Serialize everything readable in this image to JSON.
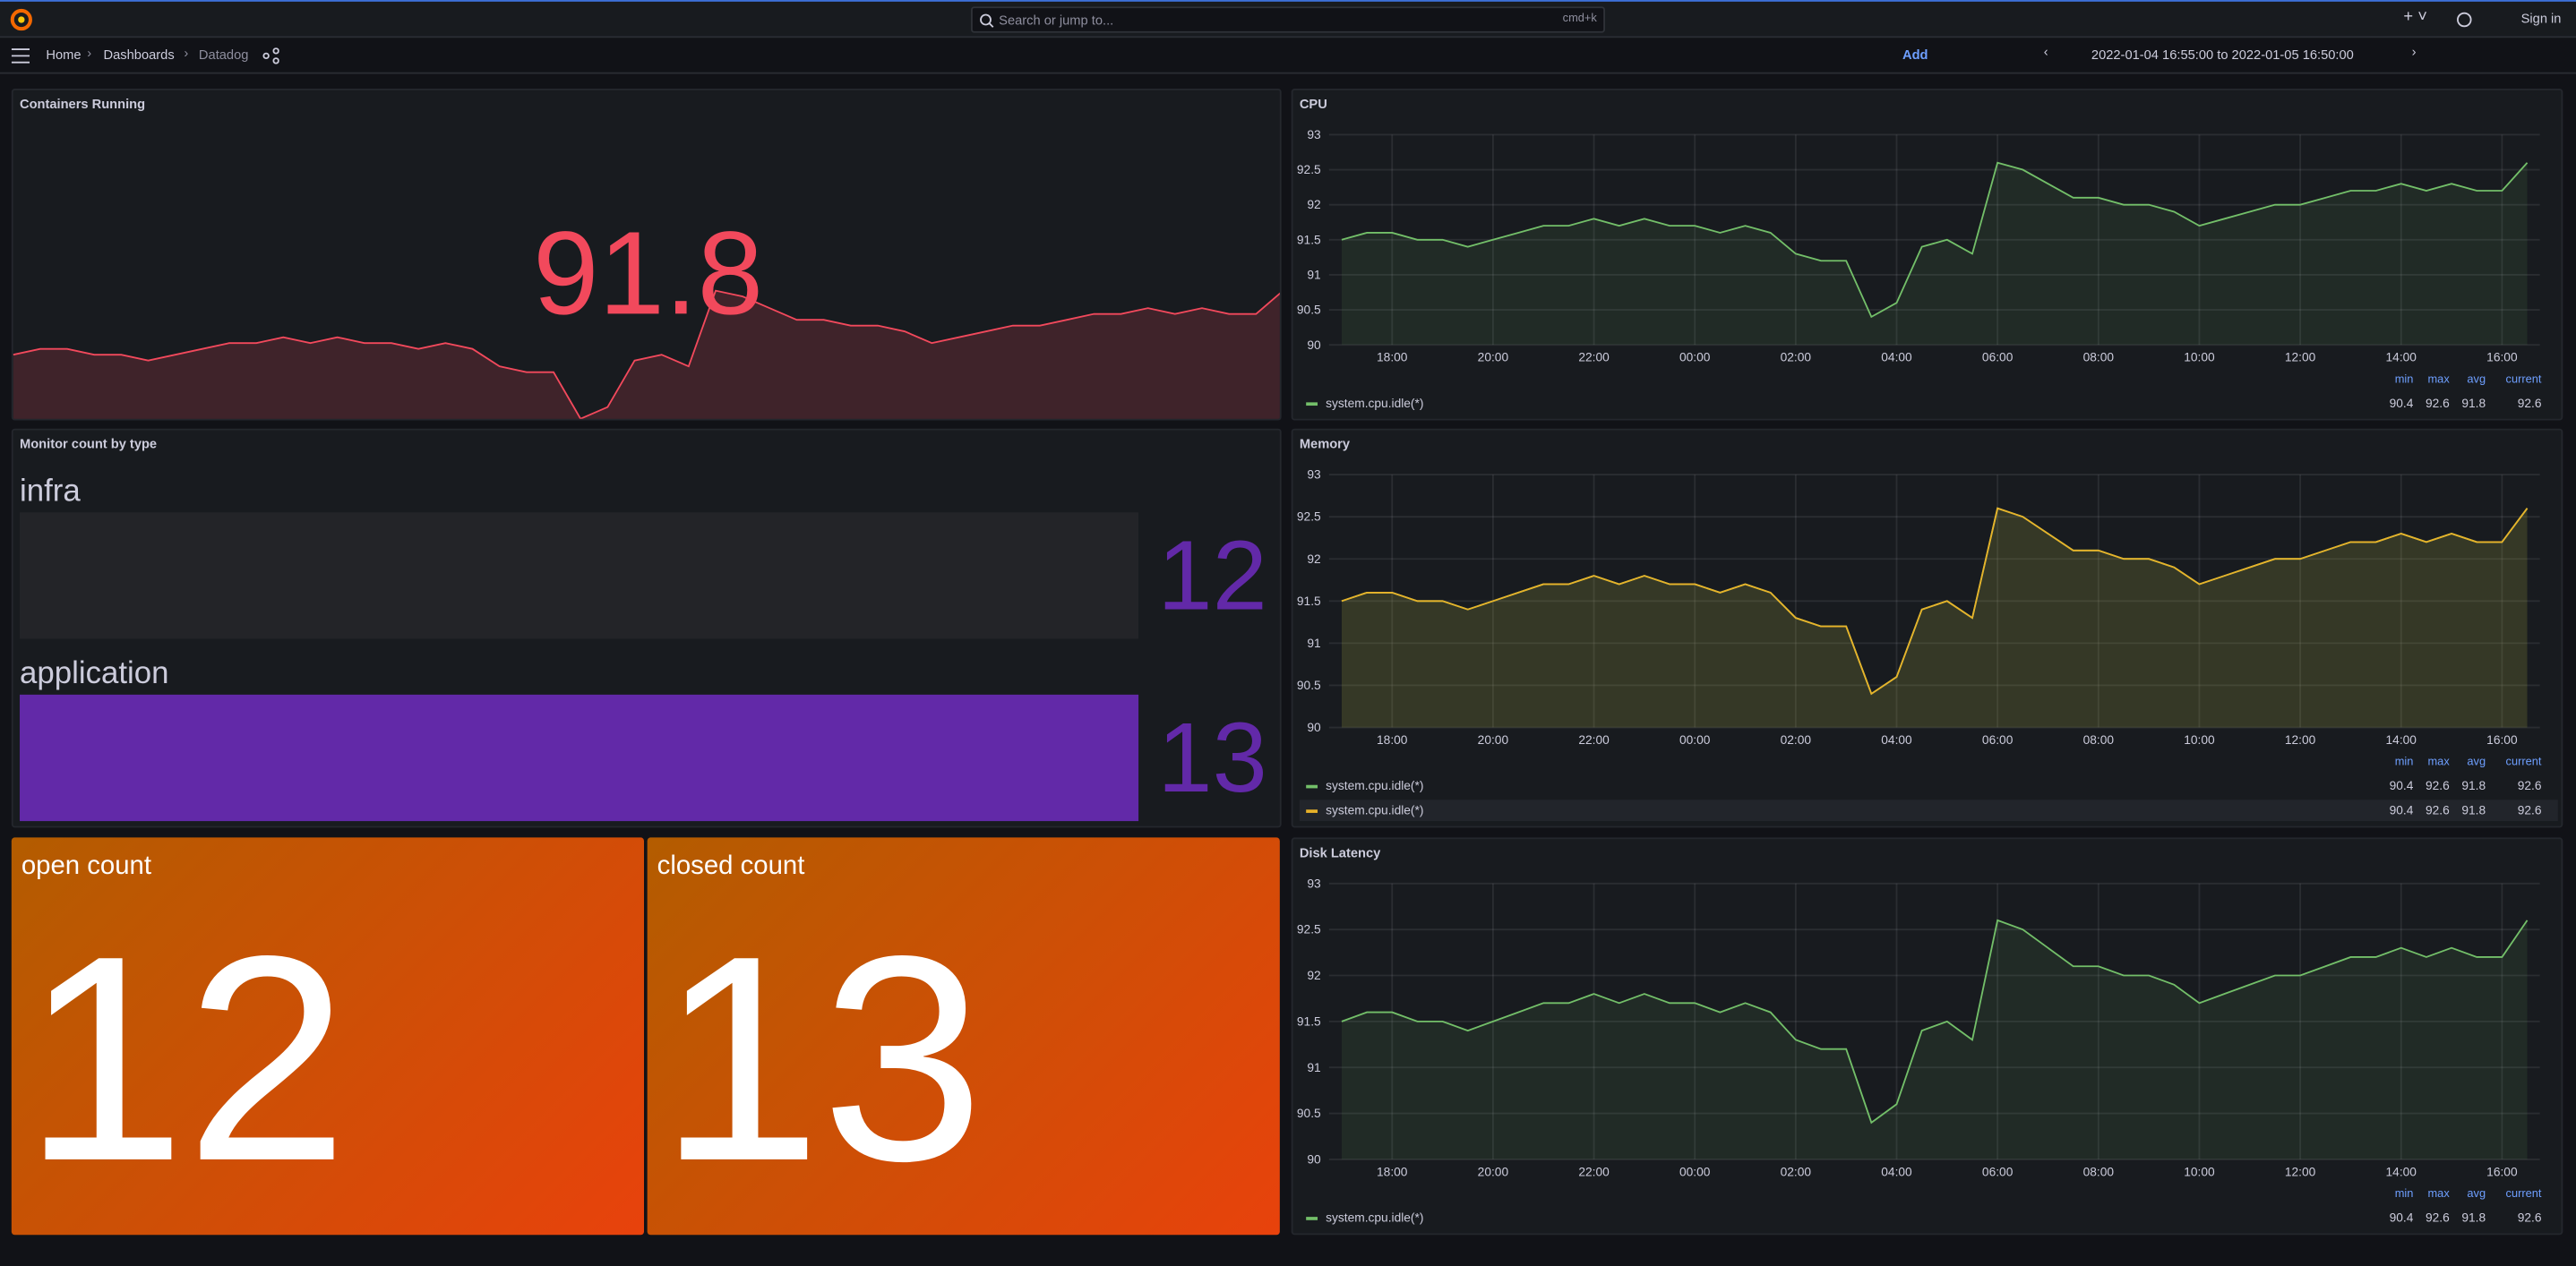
{
  "header": {
    "search_placeholder": "Search or jump to...",
    "search_shortcut": "cmd+k",
    "sign_in": "Sign in"
  },
  "toolbar": {
    "breadcrumbs": [
      "Home",
      "Dashboards",
      "Datadog"
    ],
    "add": "Add",
    "time_range": "2022-01-04 16:55:00 to 2022-01-05 16:50:00"
  },
  "chart_data": [
    {
      "type": "stat",
      "title": "Containers Running",
      "value": 91.8,
      "color": "#f2495c",
      "color_mode": "value",
      "values": [
        91.5,
        91.6,
        91.6,
        91.5,
        91.5,
        91.4,
        91.5,
        91.6,
        91.7,
        91.7,
        91.8,
        91.7,
        91.8,
        91.7,
        91.7,
        91.6,
        91.7,
        91.6,
        91.3,
        91.2,
        91.2,
        90.4,
        90.6,
        91.4,
        91.5,
        91.3,
        92.6,
        92.5,
        92.3,
        92.1,
        92.1,
        92.0,
        92.0,
        91.9,
        91.7,
        91.8,
        91.9,
        92.0,
        92.0,
        92.1,
        92.2,
        92.2,
        92.3,
        92.2,
        92.3,
        92.2,
        92.2,
        92.6
      ]
    },
    {
      "type": "line",
      "title": "CPU",
      "x": [
        "17:00",
        "17:30",
        "18:00",
        "18:30",
        "19:00",
        "19:30",
        "20:00",
        "20:30",
        "21:00",
        "21:30",
        "22:00",
        "22:30",
        "23:00",
        "23:30",
        "00:00",
        "00:30",
        "01:00",
        "01:30",
        "02:00",
        "02:30",
        "03:00",
        "03:30",
        "04:00",
        "04:30",
        "05:00",
        "05:30",
        "06:00",
        "06:30",
        "07:00",
        "07:30",
        "08:00",
        "08:30",
        "09:00",
        "09:30",
        "10:00",
        "10:30",
        "11:00",
        "11:30",
        "12:00",
        "12:30",
        "13:00",
        "13:30",
        "14:00",
        "14:30",
        "15:00",
        "15:30",
        "16:00",
        "16:30"
      ],
      "xticks": [
        "18:00",
        "20:00",
        "22:00",
        "00:00",
        "02:00",
        "04:00",
        "06:00",
        "08:00",
        "10:00",
        "12:00",
        "14:00",
        "16:00"
      ],
      "ylim": [
        90,
        93
      ],
      "yticks": [
        90,
        90.5,
        91,
        91.5,
        92,
        92.5,
        93
      ],
      "grid": true,
      "legend_columns": [
        "min",
        "max",
        "avg",
        "current"
      ],
      "series": [
        {
          "name": "system.cpu.idle(*)",
          "color": "#73bf69",
          "stats": [
            90.4,
            92.6,
            91.8,
            92.6
          ],
          "values": [
            91.5,
            91.6,
            91.6,
            91.5,
            91.5,
            91.4,
            91.5,
            91.6,
            91.7,
            91.7,
            91.8,
            91.7,
            91.8,
            91.7,
            91.7,
            91.6,
            91.7,
            91.6,
            91.3,
            91.2,
            91.2,
            90.4,
            90.6,
            91.4,
            91.5,
            91.3,
            92.6,
            92.5,
            92.3,
            92.1,
            92.1,
            92.0,
            92.0,
            91.9,
            91.7,
            91.8,
            91.9,
            92.0,
            92.0,
            92.1,
            92.2,
            92.2,
            92.3,
            92.2,
            92.3,
            92.2,
            92.2,
            92.6
          ]
        }
      ]
    },
    {
      "type": "bargauge",
      "title": "Monitor count by type",
      "categories": [
        "infra",
        "application"
      ],
      "values": [
        12,
        13
      ],
      "xlim": [
        12,
        13
      ],
      "color": "#6229a8"
    },
    {
      "type": "line",
      "title": "Memory",
      "x": [
        "17:00",
        "17:30",
        "18:00",
        "18:30",
        "19:00",
        "19:30",
        "20:00",
        "20:30",
        "21:00",
        "21:30",
        "22:00",
        "22:30",
        "23:00",
        "23:30",
        "00:00",
        "00:30",
        "01:00",
        "01:30",
        "02:00",
        "02:30",
        "03:00",
        "03:30",
        "04:00",
        "04:30",
        "05:00",
        "05:30",
        "06:00",
        "06:30",
        "07:00",
        "07:30",
        "08:00",
        "08:30",
        "09:00",
        "09:30",
        "10:00",
        "10:30",
        "11:00",
        "11:30",
        "12:00",
        "12:30",
        "13:00",
        "13:30",
        "14:00",
        "14:30",
        "15:00",
        "15:30",
        "16:00",
        "16:30"
      ],
      "xticks": [
        "18:00",
        "20:00",
        "22:00",
        "00:00",
        "02:00",
        "04:00",
        "06:00",
        "08:00",
        "10:00",
        "12:00",
        "14:00",
        "16:00"
      ],
      "ylim": [
        90,
        93
      ],
      "yticks": [
        90,
        90.5,
        91,
        91.5,
        92,
        92.5,
        93
      ],
      "grid": true,
      "legend_columns": [
        "min",
        "max",
        "avg",
        "current"
      ],
      "series": [
        {
          "name": "system.cpu.idle(*)",
          "color": "#73bf69",
          "stats": [
            90.4,
            92.6,
            91.8,
            92.6
          ],
          "values": [
            91.5,
            91.6,
            91.6,
            91.5,
            91.5,
            91.4,
            91.5,
            91.6,
            91.7,
            91.7,
            91.8,
            91.7,
            91.8,
            91.7,
            91.7,
            91.6,
            91.7,
            91.6,
            91.3,
            91.2,
            91.2,
            90.4,
            90.6,
            91.4,
            91.5,
            91.3,
            92.6,
            92.5,
            92.3,
            92.1,
            92.1,
            92.0,
            92.0,
            91.9,
            91.7,
            91.8,
            91.9,
            92.0,
            92.0,
            92.1,
            92.2,
            92.2,
            92.3,
            92.2,
            92.3,
            92.2,
            92.2,
            92.6
          ]
        },
        {
          "name": "system.cpu.idle(*)",
          "color": "#e8b229",
          "stats": [
            90.4,
            92.6,
            91.8,
            92.6
          ],
          "values": [
            91.5,
            91.6,
            91.6,
            91.5,
            91.5,
            91.4,
            91.5,
            91.6,
            91.7,
            91.7,
            91.8,
            91.7,
            91.8,
            91.7,
            91.7,
            91.6,
            91.7,
            91.6,
            91.3,
            91.2,
            91.2,
            90.4,
            90.6,
            91.4,
            91.5,
            91.3,
            92.6,
            92.5,
            92.3,
            92.1,
            92.1,
            92.0,
            92.0,
            91.9,
            91.7,
            91.8,
            91.9,
            92.0,
            92.0,
            92.1,
            92.2,
            92.2,
            92.3,
            92.2,
            92.3,
            92.2,
            92.2,
            92.6
          ]
        }
      ]
    },
    {
      "type": "stat",
      "title": "open count",
      "value": 12,
      "color": "#e8420c",
      "color_mode": "background"
    },
    {
      "type": "stat",
      "title": "closed count",
      "value": 13,
      "color": "#e8420c",
      "color_mode": "background"
    },
    {
      "type": "line",
      "title": "Disk Latency",
      "x": [
        "17:00",
        "17:30",
        "18:00",
        "18:30",
        "19:00",
        "19:30",
        "20:00",
        "20:30",
        "21:00",
        "21:30",
        "22:00",
        "22:30",
        "23:00",
        "23:30",
        "00:00",
        "00:30",
        "01:00",
        "01:30",
        "02:00",
        "02:30",
        "03:00",
        "03:30",
        "04:00",
        "04:30",
        "05:00",
        "05:30",
        "06:00",
        "06:30",
        "07:00",
        "07:30",
        "08:00",
        "08:30",
        "09:00",
        "09:30",
        "10:00",
        "10:30",
        "11:00",
        "11:30",
        "12:00",
        "12:30",
        "13:00",
        "13:30",
        "14:00",
        "14:30",
        "15:00",
        "15:30",
        "16:00",
        "16:30"
      ],
      "xticks": [
        "18:00",
        "20:00",
        "22:00",
        "00:00",
        "02:00",
        "04:00",
        "06:00",
        "08:00",
        "10:00",
        "12:00",
        "14:00",
        "16:00"
      ],
      "ylim": [
        90,
        93
      ],
      "yticks": [
        90,
        90.5,
        91,
        91.5,
        92,
        92.5,
        93
      ],
      "grid": true,
      "legend_columns": [
        "min",
        "max",
        "avg",
        "current"
      ],
      "series": [
        {
          "name": "system.cpu.idle(*)",
          "color": "#73bf69",
          "stats": [
            90.4,
            92.6,
            91.8,
            92.6
          ],
          "values": [
            91.5,
            91.6,
            91.6,
            91.5,
            91.5,
            91.4,
            91.5,
            91.6,
            91.7,
            91.7,
            91.8,
            91.7,
            91.8,
            91.7,
            91.7,
            91.6,
            91.7,
            91.6,
            91.3,
            91.2,
            91.2,
            90.4,
            90.6,
            91.4,
            91.5,
            91.3,
            92.6,
            92.5,
            92.3,
            92.1,
            92.1,
            92.0,
            92.0,
            91.9,
            91.7,
            91.8,
            91.9,
            92.0,
            92.0,
            92.1,
            92.2,
            92.2,
            92.3,
            92.2,
            92.3,
            92.2,
            92.2,
            92.6
          ]
        }
      ]
    }
  ]
}
